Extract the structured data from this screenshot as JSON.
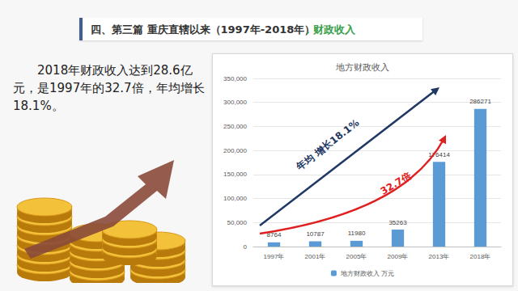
{
  "page": {
    "header_title": "四、第三篇  重庆直辖以来（1997年-2018年）",
    "header_section": "．财政收入",
    "summary": "2018年财政收入达到28.6亿元，是1997年的32.7倍，年均增长18.1%。"
  },
  "chart_data": {
    "type": "bar",
    "title": "地方财政收入",
    "categories": [
      "1997年",
      "2001年",
      "2005年",
      "2009年",
      "2013年",
      "2018年"
    ],
    "series": [
      {
        "name": "地方财政收入 万元",
        "color": "#5b9bd5",
        "values": [
          8764,
          10787,
          11980,
          35263,
          176414,
          286271
        ]
      }
    ],
    "ylim": [
      0,
      350000
    ],
    "yticks": [
      0,
      50000,
      100000,
      150000,
      200000,
      250000,
      300000,
      350000
    ],
    "grid": true,
    "legend": "bottom",
    "data_labels": true,
    "annotations": [
      "年均 增长18.1%",
      "32.7倍"
    ]
  }
}
